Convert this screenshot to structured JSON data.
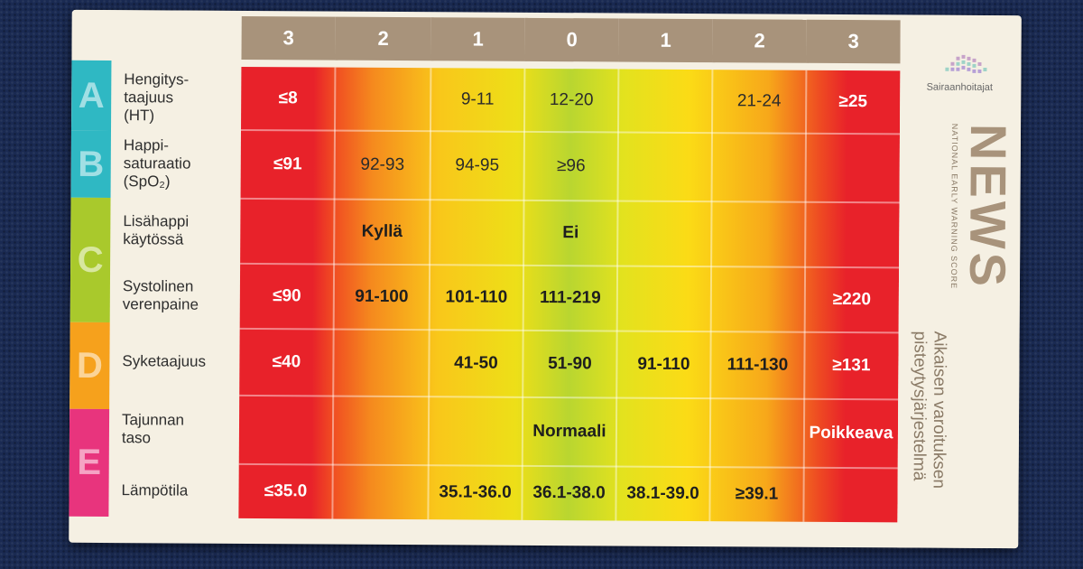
{
  "header_scores": [
    "3",
    "2",
    "1",
    "0",
    "1",
    "2",
    "3"
  ],
  "letters": [
    "A",
    "B",
    "C",
    "D",
    "E"
  ],
  "letter_colors": [
    "#2fb8c3",
    "#2fb8c3",
    "#a9c92c",
    "#f6a11c",
    "#e8347d"
  ],
  "rows": [
    {
      "label": "Hengitys-\ntaajuus\n(HT)",
      "cells": [
        "≤8",
        "",
        "9-11",
        "12-20",
        "",
        "21-24",
        "≥25"
      ]
    },
    {
      "label": "Happi-\nsaturaatio\n(SpO₂)",
      "cells": [
        "≤91",
        "92-93",
        "94-95",
        "≥96",
        "",
        "",
        ""
      ]
    },
    {
      "label": "Lisähappi\nkäytössä",
      "cells": [
        "",
        "Kyllä",
        "",
        "Ei",
        "",
        "",
        ""
      ]
    },
    {
      "label": "Systolinen\nverenpaine",
      "cells": [
        "≤90",
        "91-100",
        "101-110",
        "111-219",
        "",
        "",
        "≥220"
      ]
    },
    {
      "label": "Syketaajuus",
      "cells": [
        "≤40",
        "",
        "41-50",
        "51-90",
        "91-110",
        "111-130",
        "≥131"
      ]
    },
    {
      "label": "Tajunnan\ntaso",
      "cells": [
        "",
        "",
        "",
        "Normaali",
        "",
        "",
        "Poikkeava"
      ]
    },
    {
      "label": "Lämpötila",
      "cells": [
        "≤35.0",
        "",
        "35.1-36.0",
        "36.1-38.0",
        "38.1-39.0",
        "≥39.1",
        ""
      ]
    }
  ],
  "side": {
    "logo_text": "Sairaanhoitajat",
    "title": "NEWS",
    "subtitle": "NATIONAL EARLY WARNING SCORE",
    "finnish_line1": "Aikaisen varoituksen",
    "finnish_line2": "pisteytysjärjestelmä"
  }
}
